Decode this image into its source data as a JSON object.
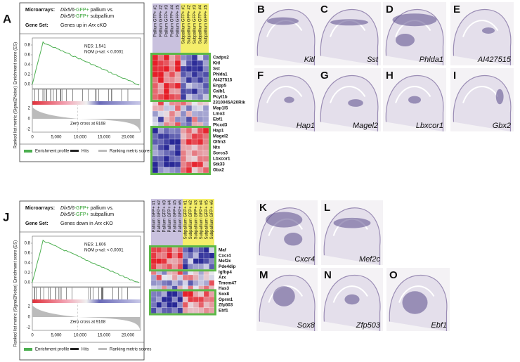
{
  "panels": [
    {
      "letter": "A",
      "microarrays_label": "Microarrays:",
      "line1": [
        "Dlx5/6",
        "-GFP+",
        " pallium vs."
      ],
      "line2": [
        "Dlx5/6",
        "-GFP+",
        " subpallium"
      ],
      "gene_set_label": "Gene Set:",
      "gene_set": [
        "Genes up in ",
        "Arx",
        " cKO"
      ],
      "nes": "NES: 1.541",
      "pval": "NOM p-val: < 0.0001",
      "zero_cross": "Zero cross at 9168",
      "es_axis_label": "Enrichment score (ES)",
      "es_ticks": [
        "0.8",
        "0.6",
        "0.4",
        "0.2",
        "0.0"
      ],
      "metric_axis_label": "Ranked list metric (Signal2Noise)",
      "metric_ticks": [
        "2",
        "0",
        "-2"
      ],
      "x_ticks": [
        "0",
        "5,000",
        "10,000",
        "15,000",
        "20,000"
      ],
      "legend": [
        "Enrichment profile",
        "Hits",
        "Ranking metric scores"
      ],
      "heatmap": {
        "columns": [
          "Pallium GFP+ #1",
          "Pallium GFP+ #2",
          "Pallium GFP+ #3",
          "Pallium GFP+ #4",
          "Pallium GFP+ #5",
          "Subpallium GFP+ #1",
          "Subpallium GFP+ #2",
          "Subpallium GFP+ #3",
          "Subpallium GFP+ #4",
          "Subpallium GFP+ #5"
        ],
        "genes": [
          "Cadps2",
          "Kitl",
          "Sst",
          "Phlda1",
          "AI427515",
          "Enpp5",
          "Calb1",
          "Pcyt1b",
          "2310045A20Rik",
          "Map1l5",
          "Lmo3",
          "Ebf1",
          "Plcxd3",
          "Hap1",
          "Magel2",
          "Olfm3",
          "Nts",
          "Sorcs3",
          "Lbxcor1",
          "Stk33",
          "Gbx2"
        ]
      },
      "images": [
        {
          "letter": "B",
          "gene": "Kitl"
        },
        {
          "letter": "C",
          "gene": "Sst"
        },
        {
          "letter": "D",
          "gene": "Phlda1"
        },
        {
          "letter": "E",
          "gene": "AI427515"
        },
        {
          "letter": "F",
          "gene": "Hap1"
        },
        {
          "letter": "G",
          "gene": "Magel2"
        },
        {
          "letter": "H",
          "gene": "Lbxcor1"
        },
        {
          "letter": "I",
          "gene": "Gbx2"
        }
      ]
    },
    {
      "letter": "J",
      "microarrays_label": "Microarrays:",
      "line1": [
        "Dlx5/6",
        "-GFP+",
        " pallium vs."
      ],
      "line2": [
        "Dlx5/6",
        "-GFP+",
        " subpallium"
      ],
      "gene_set_label": "Gene Set:",
      "gene_set": [
        "Genes down in ",
        "Arx",
        " cKO"
      ],
      "nes": "NES: 1.606",
      "pval": "NOM p-val: < 0.0001",
      "zero_cross": "Zero cross at 9168",
      "es_axis_label": "Enrichment score (ES)",
      "es_ticks": [
        "0.8",
        "0.6",
        "0.4",
        "0.2",
        "0.0"
      ],
      "metric_axis_label": "Ranked list metric (Signal2Noise)",
      "metric_ticks": [
        "2",
        "0",
        "-2"
      ],
      "x_ticks": [
        "0",
        "5,000",
        "10,000",
        "15,000",
        "20,000"
      ],
      "legend": [
        "Enrichment profile",
        "Hits",
        "Ranking metric scores"
      ],
      "heatmap": {
        "columns": [
          "Pallium GFP+ #1",
          "Pallium GFP+ #2",
          "Pallium GFP+ #3",
          "Pallium GFP+ #4",
          "Pallium GFP+ #5",
          "Pallium GFP+ #6",
          "Subpallium GFP+ #1",
          "Subpallium GFP+ #2",
          "Subpallium GFP+ #3",
          "Subpallium GFP+ #4",
          "Subpallium GFP+ #5",
          "Subpallium GFP+ #6"
        ],
        "genes": [
          "Maf",
          "Cxcr4",
          "Mef2c",
          "Pde4dip",
          "Igfbp4",
          "Arx",
          "Tmem47",
          "Has3",
          "Sox8",
          "Oprm1",
          "Zfp503",
          "Ebf1"
        ]
      },
      "images": [
        {
          "letter": "K",
          "gene": "Cxcr4"
        },
        {
          "letter": "L",
          "gene": "Mef2c"
        },
        {
          "letter": "M",
          "gene": "Sox8"
        },
        {
          "letter": "N",
          "gene": "Zfp503"
        },
        {
          "letter": "O",
          "gene": "Ebf1"
        }
      ]
    }
  ]
}
